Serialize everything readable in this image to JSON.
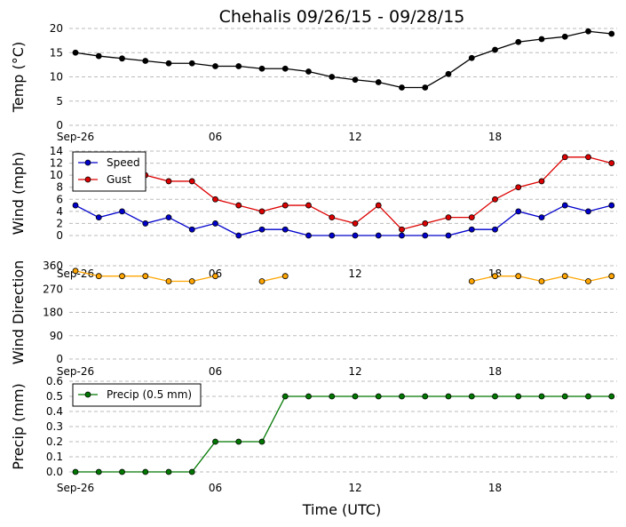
{
  "title": "Chehalis 09/26/15 - 09/28/15",
  "xlabel": "Time (UTC)",
  "xtick_labels": [
    "Sep-26",
    "06",
    "12",
    "18"
  ],
  "chart_data": [
    {
      "type": "line",
      "ylabel": "Temp (°C)",
      "ylim": [
        0,
        20
      ],
      "yticks": [
        0,
        5,
        10,
        15,
        20
      ],
      "x": [
        0,
        1,
        2,
        3,
        4,
        5,
        6,
        7,
        8,
        9,
        10,
        11,
        12,
        13,
        14,
        15,
        16,
        17,
        18,
        19,
        20,
        21,
        22,
        23
      ],
      "series": [
        {
          "color": "#000000",
          "values": [
            15,
            14.3,
            13.8,
            13.3,
            12.8,
            12.8,
            12.2,
            12.2,
            11.7,
            11.7,
            11.1,
            10,
            9.4,
            8.9,
            7.8,
            7.8,
            10.6,
            13.9,
            15.6,
            17.2,
            17.8,
            18.3,
            19.4,
            18.9
          ]
        }
      ],
      "grid": true
    },
    {
      "type": "line",
      "ylabel": "Wind (mph)",
      "ylim": [
        0,
        14
      ],
      "yticks": [
        0,
        2,
        4,
        6,
        8,
        10,
        12,
        14
      ],
      "x": [
        0,
        1,
        2,
        3,
        4,
        5,
        6,
        7,
        8,
        9,
        10,
        11,
        12,
        13,
        14,
        15,
        16,
        17,
        18,
        19,
        20,
        21,
        22,
        23
      ],
      "legend_position": "upper-left",
      "series": [
        {
          "name": "Speed",
          "color": "#0000cc",
          "values": [
            5,
            3,
            4,
            2,
            3,
            1,
            2,
            0,
            1,
            1,
            0,
            0,
            0,
            0,
            0,
            0,
            0,
            1,
            1,
            4,
            3,
            5,
            4,
            5
          ]
        },
        {
          "name": "Gust",
          "color": "#dd0000",
          "values": [
            null,
            null,
            null,
            10,
            9,
            9,
            6,
            5,
            4,
            5,
            5,
            3,
            2,
            5,
            1,
            2,
            3,
            3,
            6,
            8,
            9,
            13,
            13,
            12
          ]
        }
      ],
      "grid": true
    },
    {
      "type": "line",
      "ylabel": "Wind Direction",
      "ylim": [
        0,
        360
      ],
      "yticks": [
        0,
        90,
        180,
        270,
        360
      ],
      "x": [
        0,
        1,
        2,
        3,
        4,
        5,
        6,
        7,
        8,
        9,
        10,
        11,
        12,
        13,
        14,
        15,
        16,
        17,
        18,
        19,
        20,
        21,
        22,
        23
      ],
      "series": [
        {
          "color": "#ffa500",
          "values": [
            340,
            320,
            320,
            320,
            300,
            300,
            320,
            null,
            300,
            320,
            null,
            null,
            null,
            null,
            null,
            null,
            null,
            300,
            320,
            320,
            300,
            320,
            300,
            320
          ]
        }
      ],
      "grid": true
    },
    {
      "type": "line",
      "ylabel": "Precip (mm)",
      "ylim": [
        0,
        0.6
      ],
      "yticks": [
        0.0,
        0.1,
        0.2,
        0.3,
        0.4,
        0.5,
        0.6
      ],
      "x": [
        0,
        1,
        2,
        3,
        4,
        5,
        6,
        7,
        8,
        9,
        10,
        11,
        12,
        13,
        14,
        15,
        16,
        17,
        18,
        19,
        20,
        21,
        22,
        23
      ],
      "legend_position": "upper-left",
      "series": [
        {
          "name": "Precip (0.5 mm)",
          "color": "#007700",
          "values": [
            0,
            0,
            0,
            0,
            0,
            0,
            0.2,
            0.2,
            0.2,
            0.5,
            0.5,
            0.5,
            0.5,
            0.5,
            0.5,
            0.5,
            0.5,
            0.5,
            0.5,
            0.5,
            0.5,
            0.5,
            0.5,
            0.5
          ]
        }
      ],
      "grid": true
    }
  ]
}
